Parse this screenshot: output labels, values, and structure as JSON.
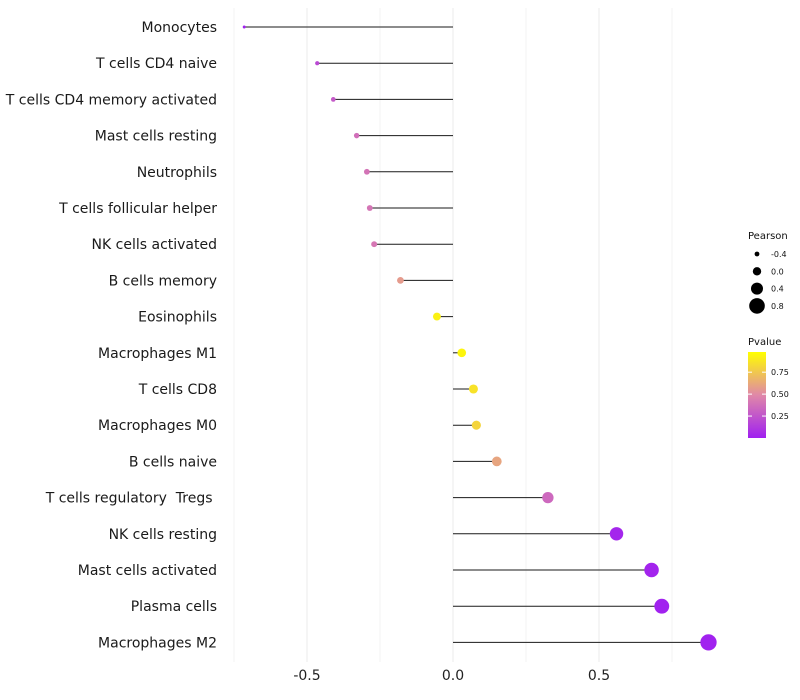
{
  "chart_data": {
    "type": "lollipop",
    "title": "",
    "xlabel": "",
    "ylabel": "",
    "xlim": [
      -0.75,
      0.9
    ],
    "x_ticks": [
      -0.5,
      0.0,
      0.5
    ],
    "x_tick_labels": [
      "-0.5",
      "0.0",
      "0.5"
    ],
    "grid": true,
    "categories": [
      "Monocytes",
      "T cells CD4 naive",
      "T cells CD4 memory activated",
      "Mast cells resting",
      "Neutrophils",
      "T cells follicular helper",
      "NK cells activated",
      "B cells memory",
      "Eosinophils",
      "Macrophages M1",
      "T cells CD8",
      "Macrophages M0",
      "B cells naive",
      "T cells regulatory  Tregs ",
      "NK cells resting",
      "Mast cells activated",
      "Plasma cells",
      "Macrophages M2"
    ],
    "pearson": [
      -0.715,
      -0.465,
      -0.41,
      -0.33,
      -0.295,
      -0.285,
      -0.27,
      -0.18,
      -0.055,
      0.03,
      0.07,
      0.08,
      0.15,
      0.325,
      0.56,
      0.68,
      0.715,
      0.875
    ],
    "pvalue": [
      0.01,
      0.2,
      0.28,
      0.38,
      0.4,
      0.41,
      0.42,
      0.58,
      0.94,
      0.96,
      0.88,
      0.82,
      0.62,
      0.35,
      0.03,
      0.02,
      0.01,
      0.01
    ],
    "legend_size": {
      "title": "Pearson",
      "labels": [
        "-0.4",
        "0.0",
        "0.4",
        "0.8"
      ],
      "values": [
        -0.4,
        0.0,
        0.4,
        0.8
      ]
    },
    "legend_color": {
      "title": "Pvalue",
      "labels": [
        "0.75",
        "0.50",
        "0.25"
      ],
      "values": [
        0.75,
        0.5,
        0.25
      ],
      "low_color": "#a020f0",
      "mid_color": "#e088a8",
      "high_color": "#ffff00"
    },
    "legend_position": "right"
  }
}
